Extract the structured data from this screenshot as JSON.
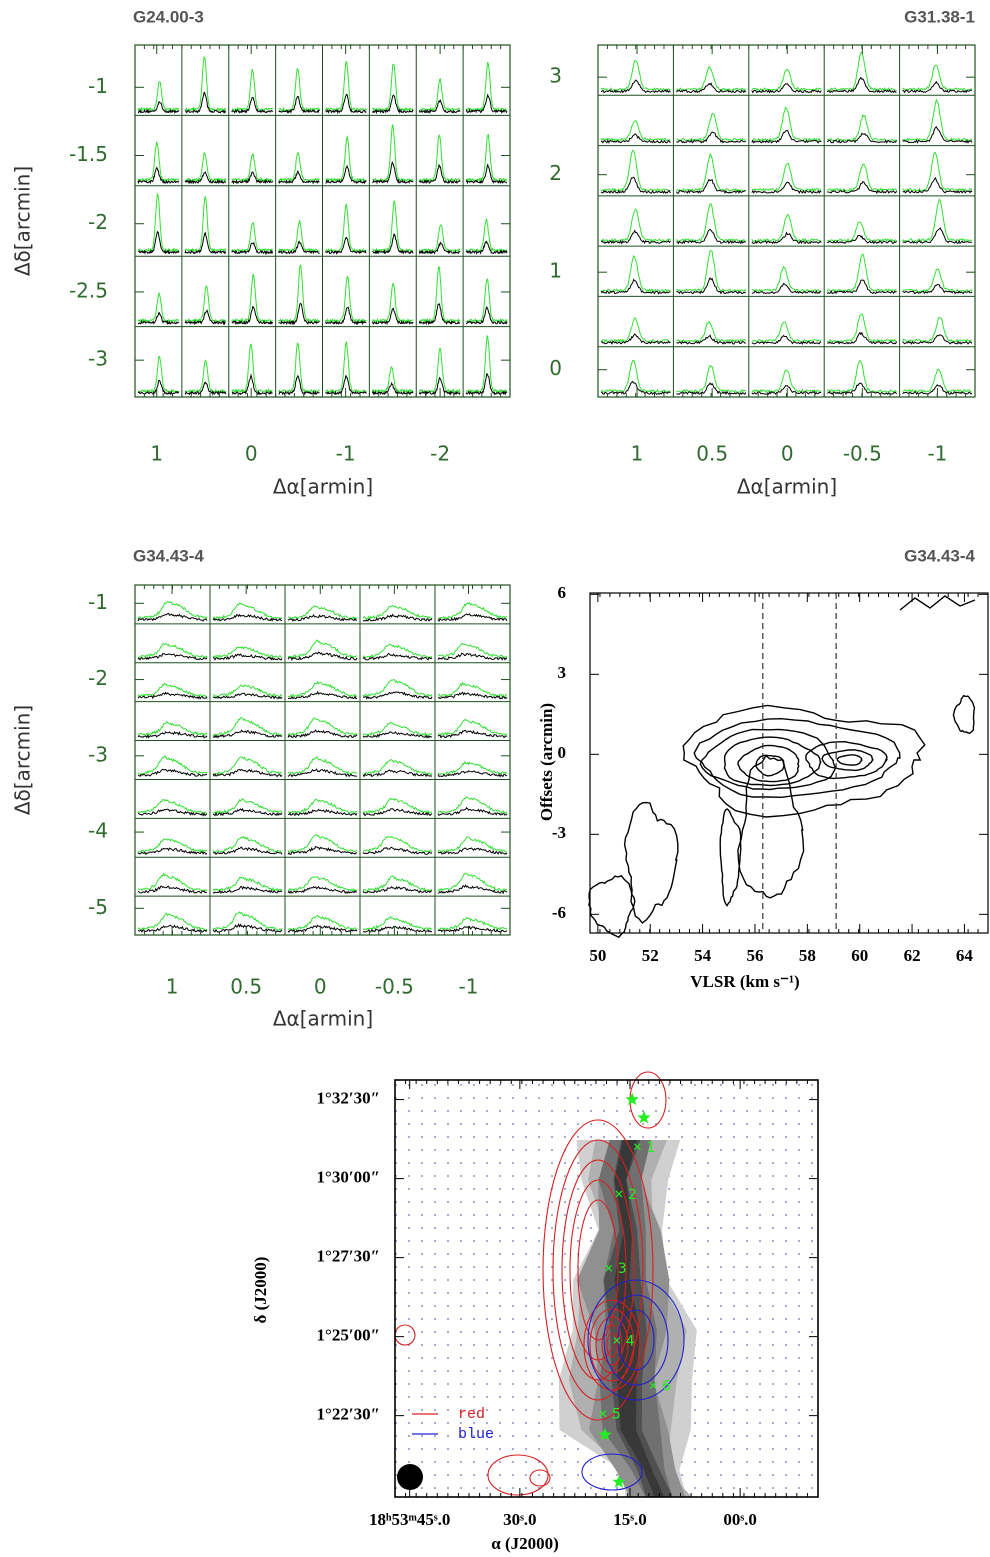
{
  "chart_data": [
    {
      "type": "spectra",
      "title": "G24.00-3",
      "xlabel": "Δα[armin]",
      "ylabel": "Δδ[arcmin]",
      "xlim": [
        1.23,
        -2.74
      ],
      "ylim": [
        -3.27,
        -0.69
      ],
      "xticks": [
        1,
        0,
        -1,
        -2
      ],
      "yticks": [
        -1,
        -1.5,
        -2,
        -2.5,
        -3
      ]
    },
    {
      "type": "spectra",
      "title": "G31.38-1",
      "xlabel": "Δα[armin]",
      "xlim": [
        1.26,
        -1.25
      ],
      "ylim": [
        -0.28,
        3.33
      ],
      "xticks": [
        1,
        0.5,
        0,
        -0.5,
        -1
      ],
      "yticks": [
        0,
        1,
        2,
        3
      ]
    },
    {
      "type": "spectra",
      "title": "G34.43-4",
      "xlabel": "Δα[armin]",
      "ylabel": "Δδ[arcmin]",
      "xlim": [
        1.25,
        -1.28
      ],
      "ylim": [
        -5.35,
        -0.76
      ],
      "xticks": [
        1,
        0.5,
        0,
        -0.5,
        -1
      ],
      "yticks": [
        -1,
        -2,
        -3,
        -4,
        -5
      ]
    },
    {
      "type": "contour",
      "title": "G34.43-4",
      "xlabel": "VLSR (km s⁻¹)",
      "ylabel": "Offsets (arcmin)",
      "xlim": [
        49.7,
        64.9
      ],
      "ylim": [
        -6.7,
        6.05
      ],
      "xticks": [
        50,
        52,
        54,
        56,
        58,
        60,
        62,
        64
      ],
      "yticks": [
        -6,
        -3,
        0,
        3,
        6
      ],
      "vlines": [
        56.3,
        59.1
      ]
    },
    {
      "type": "map",
      "xlabel": "α (J2000)",
      "ylabel": "δ (J2000)",
      "xlim": [
        47.0,
        -10.6
      ],
      "ylim": [
        1.3321,
        1.552
      ],
      "xticks": [
        {
          "value": 45,
          "label": "18ʰ53ᵐ45ˢ.0"
        },
        {
          "value": 30,
          "label": "30ˢ.0"
        },
        {
          "value": 15,
          "label": "15ˢ.0"
        },
        {
          "value": 0,
          "label": "00ˢ.0"
        }
      ],
      "yticks": [
        {
          "value": 1.541667,
          "label": "1°32′30″"
        },
        {
          "value": 1.5,
          "label": "1°30′00″"
        },
        {
          "value": 1.458333,
          "label": "1°27′30″"
        },
        {
          "value": 1.416667,
          "label": "1°25′00″"
        },
        {
          "value": 1.375,
          "label": "1°22′30″"
        }
      ],
      "series": [
        {
          "name": "red",
          "color": "#d62020"
        },
        {
          "name": "blue",
          "color": "#2020d0"
        }
      ],
      "sources": {
        "labels": [
          "1",
          "2",
          "3",
          "4",
          "5",
          "6"
        ],
        "x": [
          14.0,
          16.5,
          17.9,
          16.8,
          18.7,
          11.85
        ],
        "y": [
          1.5168,
          1.4919,
          1.4528,
          1.4147,
          1.3761,
          1.3909
        ]
      },
      "stars": {
        "x": [
          14.7,
          13.1,
          18.4,
          16.5
        ],
        "y": [
          1.5417,
          1.5321,
          1.3649,
          1.34
        ]
      }
    }
  ]
}
